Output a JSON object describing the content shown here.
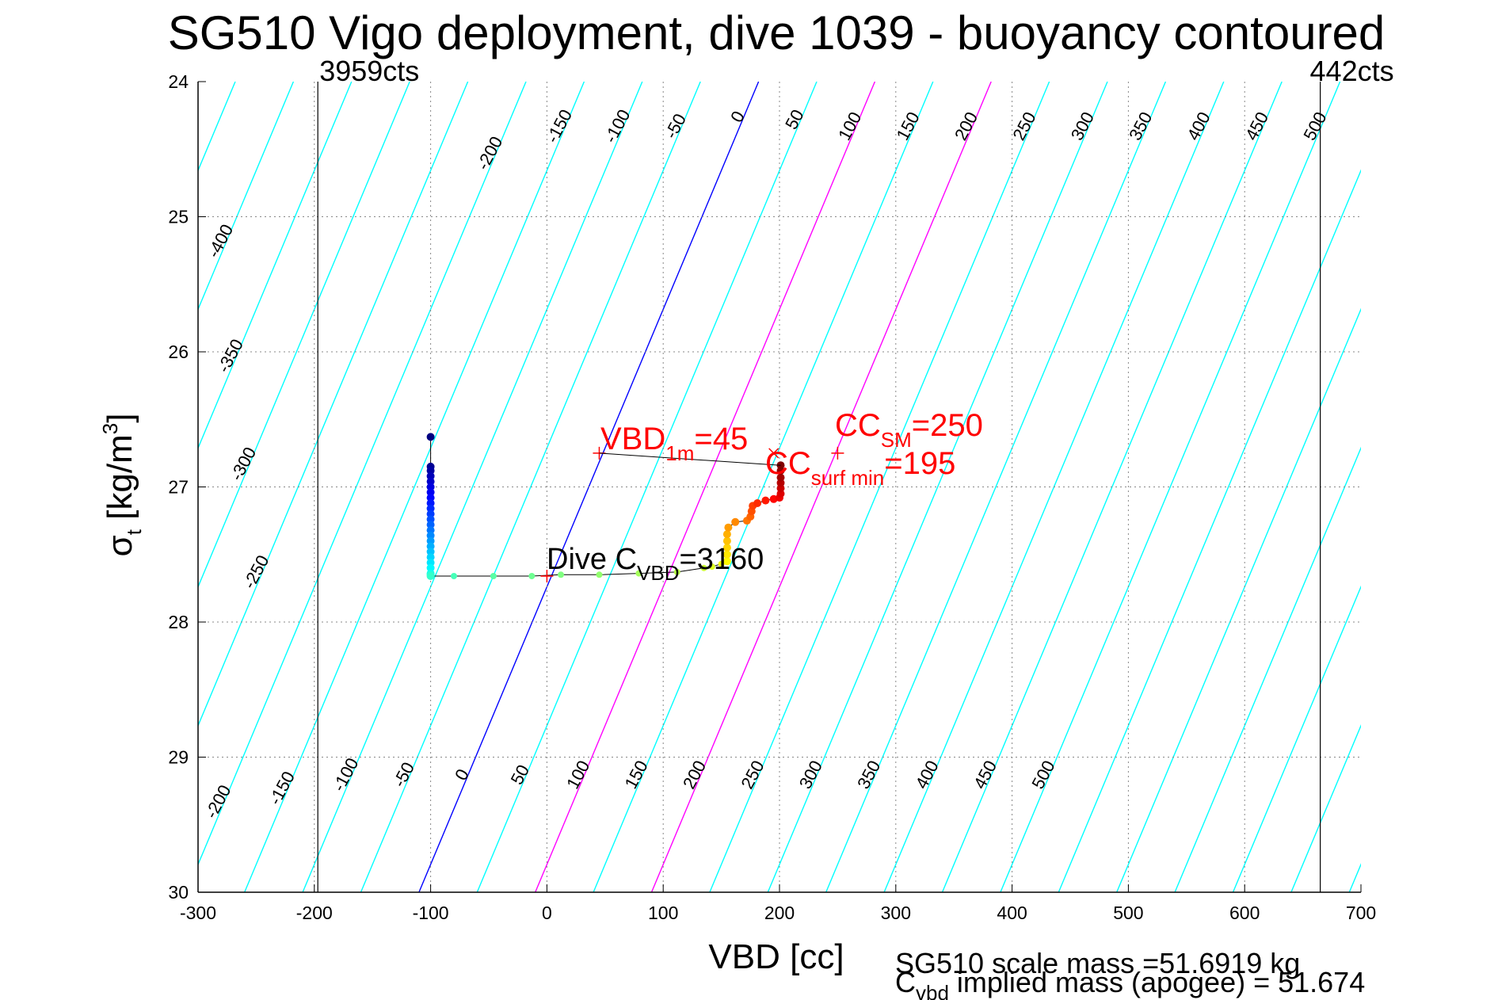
{
  "chart_data": {
    "type": "scatter",
    "title": "SG510 Vigo deployment, dive 1039 - buoyancy contoured",
    "xlabel": "VBD [cc]",
    "ylabel": {
      "main": "σ",
      "sub": "t",
      "rest": " [kg/m",
      "sup": "3",
      "close": "]"
    },
    "xlim": [
      -300,
      700
    ],
    "ylim": [
      24,
      30
    ],
    "y_reversed": true,
    "xticks": [
      -300,
      -200,
      -100,
      0,
      100,
      200,
      300,
      400,
      500,
      600,
      700
    ],
    "yticks": [
      24,
      25,
      26,
      27,
      28,
      29,
      30
    ],
    "grid": true,
    "count_limits": [
      {
        "label": "3959cts",
        "x": -197
      },
      {
        "label": "442cts",
        "x": 665
      }
    ],
    "contours": {
      "levels": [
        -400,
        -350,
        -300,
        -250,
        -200,
        -150,
        -100,
        -50,
        0,
        50,
        100,
        150,
        200,
        250,
        300,
        350,
        400,
        450,
        500
      ],
      "zero_x_at_sigma30": -110,
      "zero_x_at_sigma24": 182,
      "spacing_cc": 50,
      "colors": {
        "default": "#00ffff",
        "zero": "#0000ff",
        "highlight": "#ff00ff"
      },
      "highlight_levels": [
        100,
        200
      ],
      "top_labels": [
        "-400",
        "-350",
        "-300",
        "-250",
        "-200",
        "-150",
        "-100",
        "-50",
        "0",
        "50",
        "100",
        "150",
        "200",
        "250",
        "300",
        "350",
        "400",
        "450",
        "500"
      ],
      "bottom_labels": [
        "-200",
        "-150",
        "-100",
        "-50",
        "0",
        "50",
        "100",
        "150",
        "200",
        "250",
        "300",
        "350",
        "400",
        "450",
        "500"
      ]
    },
    "series": [
      {
        "kind": "descent",
        "points": [
          [
            -100,
            26.63
          ],
          [
            -100,
            26.85
          ],
          [
            -100,
            26.88
          ],
          [
            -100,
            26.92
          ],
          [
            -100,
            26.96
          ],
          [
            -100,
            27.0
          ],
          [
            -100,
            27.04
          ],
          [
            -100,
            27.08
          ],
          [
            -100,
            27.12
          ],
          [
            -100,
            27.16
          ],
          [
            -100,
            27.2
          ],
          [
            -100,
            27.24
          ],
          [
            -100,
            27.28
          ],
          [
            -100,
            27.32
          ],
          [
            -100,
            27.36
          ],
          [
            -100,
            27.4
          ],
          [
            -100,
            27.44
          ],
          [
            -100,
            27.48
          ],
          [
            -100,
            27.52
          ],
          [
            -100,
            27.56
          ],
          [
            -100,
            27.6
          ],
          [
            -100,
            27.64
          ],
          [
            -100,
            27.65
          ],
          [
            -100,
            27.66
          ]
        ]
      },
      {
        "kind": "transition",
        "points": [
          [
            -80,
            27.66
          ],
          [
            -46,
            27.66
          ],
          [
            -13,
            27.66
          ],
          [
            12,
            27.65
          ],
          [
            45,
            27.65
          ],
          [
            79,
            27.64
          ],
          [
            112,
            27.63
          ],
          [
            135,
            27.6
          ],
          [
            142,
            27.59
          ],
          [
            150,
            27.57
          ]
        ]
      },
      {
        "kind": "ascent",
        "points": [
          [
            155,
            27.55
          ],
          [
            155,
            27.5
          ],
          [
            155,
            27.45
          ],
          [
            155,
            27.4
          ],
          [
            155,
            27.35
          ],
          [
            156,
            27.3
          ],
          [
            162,
            27.26
          ],
          [
            172,
            27.25
          ],
          [
            175,
            27.22
          ],
          [
            176,
            27.18
          ],
          [
            177,
            27.14
          ],
          [
            181,
            27.12
          ],
          [
            188,
            27.1
          ],
          [
            195,
            27.09
          ],
          [
            200,
            27.08
          ],
          [
            201,
            27.05
          ],
          [
            201,
            27.01
          ],
          [
            201,
            26.97
          ],
          [
            201,
            26.93
          ],
          [
            201,
            26.88
          ],
          [
            201,
            26.84
          ]
        ]
      }
    ],
    "annotations": {
      "vbd_1m": {
        "main": "VBD",
        "sub": "1m",
        "rest": "=45"
      },
      "cc_sm": {
        "main": "CC",
        "sub": "SM",
        "rest": "=250"
      },
      "cc_surf": {
        "main": "CC",
        "sub": "surf min",
        "rest": "=195"
      },
      "dive_c": {
        "main": "Dive C",
        "sub": "VBD",
        "rest": "=3160"
      }
    },
    "reference_markers": {
      "vbd_1m_plus": [
        45,
        26.75
      ],
      "cc_sm_plus": [
        250,
        26.75
      ],
      "cross": [
        195,
        26.75
      ],
      "dive_c_plus": [
        0,
        27.66
      ]
    },
    "footer": {
      "line1": "SG510 scale mass =51.6919 kg",
      "line2_main": "C",
      "line2_sub": "vbd",
      "line2_rest": " implied mass (apogee) = 51.674"
    }
  }
}
